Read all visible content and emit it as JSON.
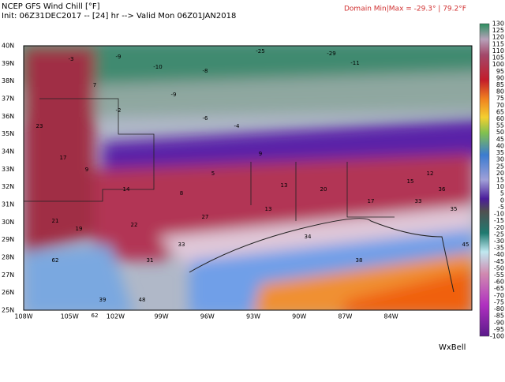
{
  "header": {
    "title": "NCEP GFS Wind Chill [°F]",
    "init": "Init: 06Z31DEC2017 -- [24] hr --> Valid Mon 06Z01JAN2018",
    "domain": "Domain Min|Max = -29.3° | 79.2°F"
  },
  "map": {
    "lat_labels": [
      "40N",
      "39N",
      "38N",
      "37N",
      "36N",
      "35N",
      "34N",
      "33N",
      "32N",
      "31N",
      "30N",
      "29N",
      "28N",
      "27N",
      "26N",
      "25N"
    ],
    "lon_labels": [
      "108W",
      "105W",
      "102W",
      "99W",
      "96W",
      "93W",
      "90W",
      "87W",
      "84W"
    ],
    "stations": [
      "-3",
      "-9",
      "-10",
      "-25",
      "-29",
      "-8",
      "-2",
      "-9",
      "7",
      "-4",
      "-11",
      "-6",
      "23",
      "17",
      "9",
      "14",
      "8",
      "5",
      "13",
      "20",
      "17",
      "15",
      "12",
      "9",
      "21",
      "19",
      "22",
      "27",
      "31",
      "13",
      "33",
      "36",
      "35",
      "45",
      "62",
      "39",
      "48",
      "62",
      "33",
      "34",
      "38"
    ]
  },
  "colorbar": {
    "labels": [
      "130",
      "125",
      "120",
      "115",
      "110",
      "105",
      "100",
      "95",
      "90",
      "85",
      "80",
      "75",
      "70",
      "65",
      "60",
      "55",
      "50",
      "45",
      "40",
      "35",
      "30",
      "25",
      "20",
      "15",
      "10",
      "5",
      "0",
      "-5",
      "-10",
      "-15",
      "-20",
      "-25",
      "-30",
      "-35",
      "-40",
      "-45",
      "-50",
      "-55",
      "-60",
      "-65",
      "-70",
      "-75",
      "-80",
      "-85",
      "-90",
      "-95",
      "-100"
    ]
  },
  "brand": "WxBell"
}
